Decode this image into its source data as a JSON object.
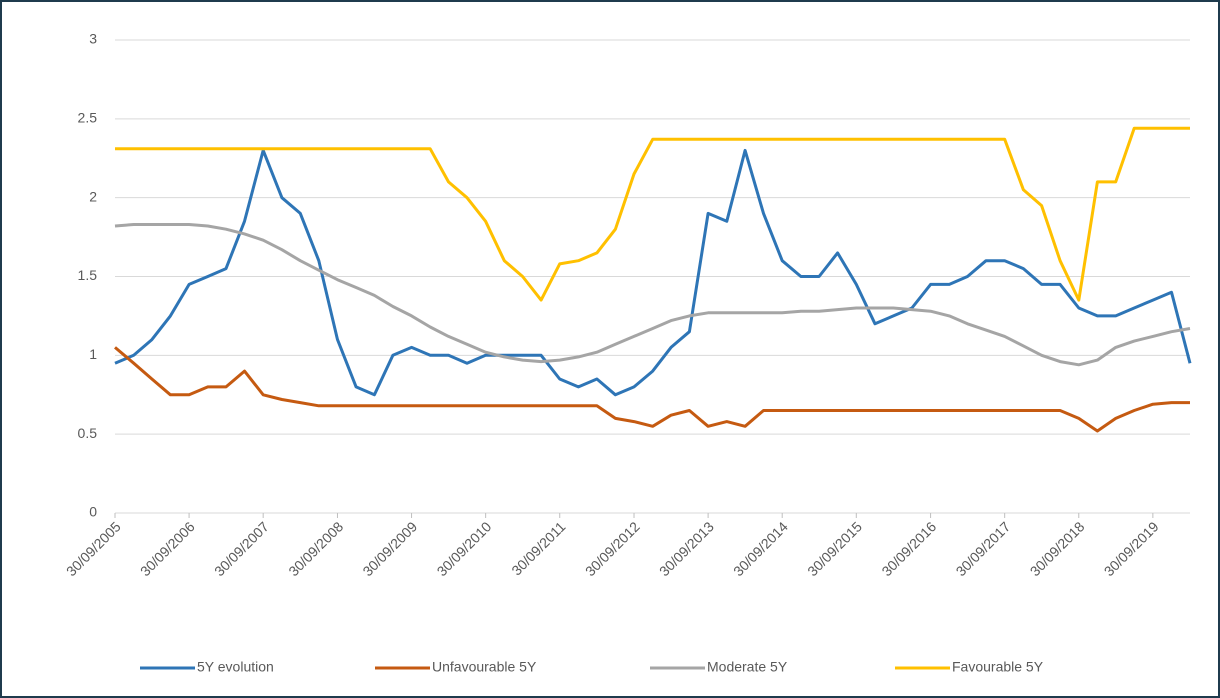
{
  "chart_data": {
    "type": "line",
    "x": [
      "30/09/2005",
      "31/12/2005",
      "31/03/2006",
      "30/06/2006",
      "30/09/2006",
      "31/12/2006",
      "31/03/2007",
      "30/06/2007",
      "30/09/2007",
      "31/12/2007",
      "31/03/2008",
      "30/06/2008",
      "30/09/2008",
      "31/12/2008",
      "31/03/2009",
      "30/06/2009",
      "30/09/2009",
      "31/12/2009",
      "31/03/2010",
      "30/06/2010",
      "30/09/2010",
      "31/12/2010",
      "31/03/2011",
      "30/06/2011",
      "30/09/2011",
      "31/12/2011",
      "31/03/2012",
      "30/06/2012",
      "30/09/2012",
      "31/12/2012",
      "31/03/2013",
      "30/06/2013",
      "30/09/2013",
      "31/12/2013",
      "31/03/2014",
      "30/06/2014",
      "30/09/2014",
      "31/12/2014",
      "31/03/2015",
      "30/06/2015",
      "30/09/2015",
      "31/12/2015",
      "31/03/2016",
      "30/06/2016",
      "30/09/2016",
      "31/12/2016",
      "31/03/2017",
      "30/06/2017",
      "30/09/2017",
      "31/12/2017",
      "31/03/2018",
      "30/06/2018",
      "30/09/2018",
      "31/12/2018",
      "31/03/2019",
      "30/06/2019",
      "30/09/2019",
      "31/12/2019",
      "31/03/2020"
    ],
    "series": [
      {
        "name": "5Y evolution",
        "color": "#2e75b6",
        "values": [
          0.95,
          1.0,
          1.1,
          1.25,
          1.45,
          1.5,
          1.55,
          1.85,
          2.3,
          2.0,
          1.9,
          1.6,
          1.1,
          0.8,
          0.75,
          1.0,
          1.05,
          1.0,
          1.0,
          0.95,
          1.0,
          1.0,
          1.0,
          1.0,
          0.85,
          0.8,
          0.85,
          0.75,
          0.8,
          0.9,
          1.05,
          1.15,
          1.9,
          1.85,
          2.3,
          1.9,
          1.6,
          1.5,
          1.5,
          1.65,
          1.45,
          1.2,
          1.25,
          1.3,
          1.45,
          1.45,
          1.5,
          1.6,
          1.6,
          1.55,
          1.45,
          1.45,
          1.3,
          1.25,
          1.25,
          1.3,
          1.35,
          1.4,
          0.95
        ]
      },
      {
        "name": "Unfavourable 5Y",
        "color": "#c55a11",
        "values": [
          1.05,
          0.95,
          0.85,
          0.75,
          0.75,
          0.8,
          0.8,
          0.9,
          0.75,
          0.72,
          0.7,
          0.68,
          0.68,
          0.68,
          0.68,
          0.68,
          0.68,
          0.68,
          0.68,
          0.68,
          0.68,
          0.68,
          0.68,
          0.68,
          0.68,
          0.68,
          0.68,
          0.6,
          0.58,
          0.55,
          0.62,
          0.65,
          0.55,
          0.58,
          0.55,
          0.65,
          0.65,
          0.65,
          0.65,
          0.65,
          0.65,
          0.65,
          0.65,
          0.65,
          0.65,
          0.65,
          0.65,
          0.65,
          0.65,
          0.65,
          0.65,
          0.65,
          0.6,
          0.52,
          0.6,
          0.65,
          0.69,
          0.7,
          0.7
        ]
      },
      {
        "name": "Moderate 5Y",
        "color": "#a5a5a5",
        "values": [
          1.82,
          1.83,
          1.83,
          1.83,
          1.83,
          1.82,
          1.8,
          1.77,
          1.73,
          1.67,
          1.6,
          1.54,
          1.48,
          1.43,
          1.38,
          1.31,
          1.25,
          1.18,
          1.12,
          1.07,
          1.02,
          0.99,
          0.97,
          0.96,
          0.97,
          0.99,
          1.02,
          1.07,
          1.12,
          1.17,
          1.22,
          1.25,
          1.27,
          1.27,
          1.27,
          1.27,
          1.27,
          1.28,
          1.28,
          1.29,
          1.3,
          1.3,
          1.3,
          1.29,
          1.28,
          1.25,
          1.2,
          1.16,
          1.12,
          1.06,
          1.0,
          0.96,
          0.94,
          0.97,
          1.05,
          1.09,
          1.12,
          1.15,
          1.17
        ]
      },
      {
        "name": "Favourable 5Y",
        "color": "#ffc000",
        "values": [
          2.31,
          2.31,
          2.31,
          2.31,
          2.31,
          2.31,
          2.31,
          2.31,
          2.31,
          2.31,
          2.31,
          2.31,
          2.31,
          2.31,
          2.31,
          2.31,
          2.31,
          2.31,
          2.1,
          2.0,
          1.85,
          1.6,
          1.5,
          1.35,
          1.58,
          1.6,
          1.65,
          1.8,
          2.15,
          2.37,
          2.37,
          2.37,
          2.37,
          2.37,
          2.37,
          2.37,
          2.37,
          2.37,
          2.37,
          2.37,
          2.37,
          2.37,
          2.37,
          2.37,
          2.37,
          2.37,
          2.37,
          2.37,
          2.37,
          2.05,
          1.95,
          1.6,
          1.35,
          2.1,
          2.1,
          2.44,
          2.44,
          2.44,
          2.44
        ]
      }
    ],
    "xlim": [
      "30/09/2005",
      "31/03/2020"
    ],
    "xticks": [
      "30/09/2005",
      "30/09/2006",
      "30/09/2007",
      "30/09/2008",
      "30/09/2009",
      "30/09/2010",
      "30/09/2011",
      "30/09/2012",
      "30/09/2013",
      "30/09/2014",
      "30/09/2015",
      "30/09/2016",
      "30/09/2017",
      "30/09/2018",
      "30/09/2019"
    ],
    "ylim": [
      0,
      3
    ],
    "yticks": [
      0,
      0.5,
      1,
      1.5,
      2,
      2.5,
      3
    ],
    "grid": true,
    "legend": "bottom"
  }
}
